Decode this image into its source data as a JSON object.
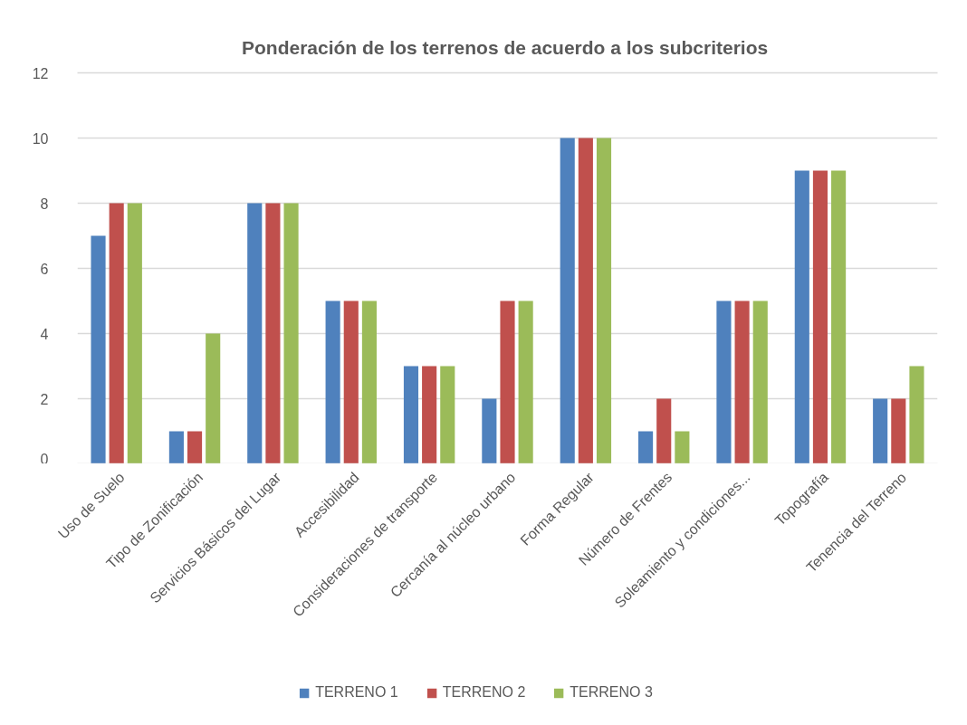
{
  "chart_data": {
    "type": "bar",
    "title": "Ponderación  de los terrenos de acuerdo a los subcriterios",
    "categories": [
      "Uso de Suelo",
      "Tipo de Zonificación",
      "Servicios Básicos del Lugar",
      "Accesibilidad",
      "Consideraciones de transporte",
      "Cercanía al núcleo urbano",
      "Forma Regular",
      "Número de Frentes",
      "Soleamiento y condiciones...",
      "Topografía",
      "Tenencia del Terreno"
    ],
    "series": [
      {
        "name": "TERRENO 1",
        "color": "#4f81bd",
        "values": [
          7,
          1,
          8,
          5,
          3,
          2,
          10,
          1,
          5,
          9,
          2
        ]
      },
      {
        "name": "TERRENO 2",
        "color": "#c0504d",
        "values": [
          8,
          1,
          8,
          5,
          3,
          5,
          10,
          2,
          5,
          9,
          2
        ]
      },
      {
        "name": "TERRENO 3",
        "color": "#9bbb59",
        "values": [
          8,
          4,
          8,
          5,
          3,
          5,
          10,
          1,
          5,
          9,
          3
        ]
      }
    ],
    "ylim": [
      0,
      12
    ],
    "yticks": [
      0,
      2,
      4,
      6,
      8,
      10,
      12
    ],
    "grid": "y",
    "legend": "bottom"
  }
}
